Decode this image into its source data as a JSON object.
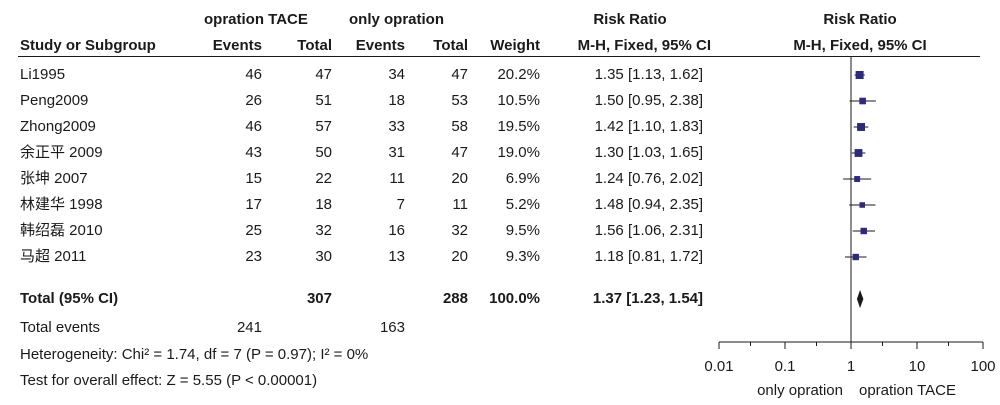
{
  "header": {
    "group1": "opration TACE",
    "group2": "only opration",
    "rr_col_title": "Risk Ratio",
    "plot_title": "Risk Ratio",
    "col_study": "Study or Subgroup",
    "col_events1": "Events",
    "col_total1": "Total",
    "col_events2": "Events",
    "col_total2": "Total",
    "col_weight": "Weight",
    "col_method": "M-H, Fixed, 95% CI",
    "plot_method": "M-H, Fixed, 95% CI"
  },
  "studies": [
    {
      "name": "Li1995",
      "e1": "46",
      "t1": "47",
      "e2": "34",
      "t2": "47",
      "weight": "20.2%",
      "ci": "1.35 [1.13, 1.62]"
    },
    {
      "name": "Peng2009",
      "e1": "26",
      "t1": "51",
      "e2": "18",
      "t2": "53",
      "weight": "10.5%",
      "ci": "1.50 [0.95, 2.38]"
    },
    {
      "name": "Zhong2009",
      "e1": "46",
      "t1": "57",
      "e2": "33",
      "t2": "58",
      "weight": "19.5%",
      "ci": "1.42 [1.10, 1.83]"
    },
    {
      "name": "余正平 2009",
      "e1": "43",
      "t1": "50",
      "e2": "31",
      "t2": "47",
      "weight": "19.0%",
      "ci": "1.30 [1.03, 1.65]"
    },
    {
      "name": "张坤 2007",
      "e1": "15",
      "t1": "22",
      "e2": "11",
      "t2": "20",
      "weight": "6.9%",
      "ci": "1.24 [0.76, 2.02]"
    },
    {
      "name": "林建华 1998",
      "e1": "17",
      "t1": "18",
      "e2": "7",
      "t2": "11",
      "weight": "5.2%",
      "ci": "1.48 [0.94, 2.35]"
    },
    {
      "name": "韩绍磊 2010",
      "e1": "25",
      "t1": "32",
      "e2": "16",
      "t2": "32",
      "weight": "9.5%",
      "ci": "1.56 [1.06, 2.31]"
    },
    {
      "name": "马超 2011",
      "e1": "23",
      "t1": "30",
      "e2": "13",
      "t2": "20",
      "weight": "9.3%",
      "ci": "1.18 [0.81, 1.72]"
    }
  ],
  "total": {
    "label": "Total (95% CI)",
    "t1": "307",
    "t2": "288",
    "weight": "100.0%",
    "ci": "1.37 [1.23, 1.54]"
  },
  "total_events": {
    "label": "Total events",
    "e1": "241",
    "e2": "163"
  },
  "heterogeneity": "Heterogeneity: Chi² = 1.74, df = 7 (P = 0.97); I² = 0%",
  "overall_effect": "Test for overall effect: Z = 5.55 (P < 0.00001)",
  "colors": {
    "marker": "#2e2a7a",
    "line": "#1a1a1a"
  },
  "chart_data": {
    "type": "forest",
    "scale": "log",
    "xlim": [
      0.01,
      100
    ],
    "ticks": [
      "0.01",
      "0.1",
      "1",
      "10",
      "100"
    ],
    "favours_left": "only opration",
    "favours_right": "opration TACE",
    "estimates": [
      {
        "rr": 1.35,
        "lo": 1.13,
        "hi": 1.62,
        "weight": 20.2
      },
      {
        "rr": 1.5,
        "lo": 0.95,
        "hi": 2.38,
        "weight": 10.5
      },
      {
        "rr": 1.42,
        "lo": 1.1,
        "hi": 1.83,
        "weight": 19.5
      },
      {
        "rr": 1.3,
        "lo": 1.03,
        "hi": 1.65,
        "weight": 19.0
      },
      {
        "rr": 1.24,
        "lo": 0.76,
        "hi": 2.02,
        "weight": 6.9
      },
      {
        "rr": 1.48,
        "lo": 0.94,
        "hi": 2.35,
        "weight": 5.2
      },
      {
        "rr": 1.56,
        "lo": 1.06,
        "hi": 2.31,
        "weight": 9.5
      },
      {
        "rr": 1.18,
        "lo": 0.81,
        "hi": 1.72,
        "weight": 9.3
      }
    ],
    "pooled": {
      "rr": 1.37,
      "lo": 1.23,
      "hi": 1.54
    }
  }
}
